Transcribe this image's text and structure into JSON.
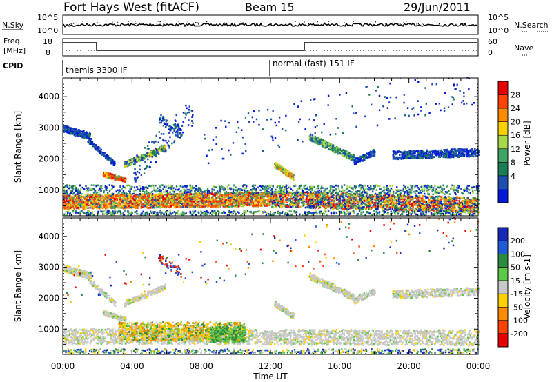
{
  "header": {
    "title": "Fort Hays West (fitACF)",
    "beam": "Beam 15",
    "date": "29/Jun/2011"
  },
  "top_strip": {
    "left_label": "N.Sky",
    "left_ticks": [
      "10^5",
      "10^0"
    ],
    "right_label": "N.Search",
    "right_ticks": [
      "10^5",
      "10^0"
    ]
  },
  "freq_strip": {
    "left_label_1": "Freq.",
    "left_label_2": "[MHz]",
    "left_ticks": [
      "18",
      "8"
    ],
    "right_label": "Nave",
    "right_ticks": [
      "60",
      "0"
    ]
  },
  "cpid_strip": {
    "label": "CPID",
    "modes": [
      "themis 3300 IF",
      "normal (fast) 151 IF"
    ]
  },
  "chart_data": [
    {
      "type": "heatmap",
      "name": "power",
      "ylabel": "Slant Range [km]",
      "yticks": [
        "1000",
        "2000",
        "3000",
        "4000"
      ],
      "ylim": [
        180,
        4600
      ],
      "xlim_hours": [
        0,
        24
      ],
      "colorbar_label": "Power [dB]",
      "colorbar_ticks": [
        "28",
        "24",
        "20",
        "16",
        "12",
        "8",
        "4"
      ],
      "colors": [
        "#e80000",
        "#ff4400",
        "#ff8c00",
        "#ffd000",
        "#a8d84a",
        "#3fa564",
        "#1b7d58",
        "#1e4fb0",
        "#0018d8"
      ]
    },
    {
      "type": "heatmap",
      "name": "velocity",
      "ylabel": "Slant Range [km]",
      "yticks": [
        "1000",
        "2000",
        "3000",
        "4000"
      ],
      "ylim": [
        180,
        4600
      ],
      "xlim_hours": [
        0,
        24
      ],
      "xlabel": "Time UT",
      "xticks": [
        "00:00",
        "04:00",
        "08:00",
        "12:00",
        "16:00",
        "20:00",
        "00:00"
      ],
      "colorbar_label": "Velocity [m s-1]",
      "colorbar_ticks": [
        "200",
        "100",
        "50",
        "15",
        "-15",
        "-50",
        "-100",
        "-200"
      ],
      "colors": [
        "#1628b8",
        "#1f5ad8",
        "#2b8a3e",
        "#5ec84a",
        "#c8c8c8",
        "#ffd000",
        "#ff8c00",
        "#ff4400",
        "#e80000"
      ]
    }
  ]
}
